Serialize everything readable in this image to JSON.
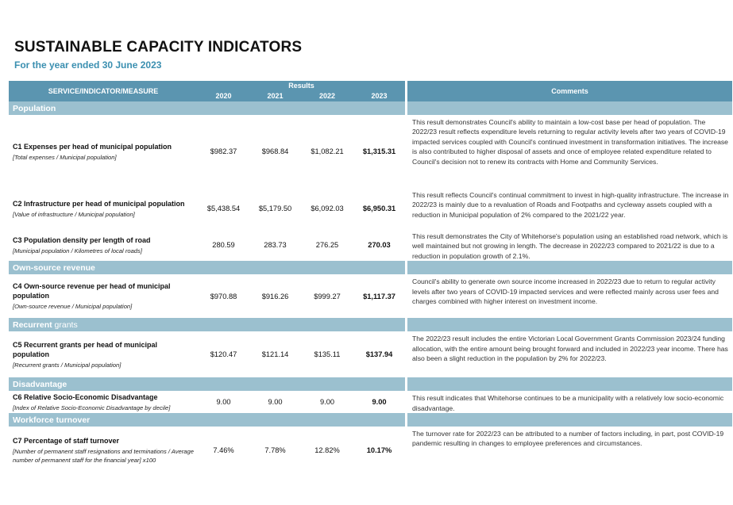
{
  "page": {
    "title": "SUSTAINABLE CAPACITY INDICATORS",
    "subtitle": "For the year ended 30 June 2023"
  },
  "table": {
    "col_indicator": "SERVICE/INDICATOR/MEASURE",
    "col_results": "Results",
    "col_comments": "Comments",
    "years": [
      "2020",
      "2021",
      "2022",
      "2023"
    ],
    "sections": [
      {
        "title": "Population",
        "title_light": "",
        "rows": [
          {
            "name": "C1 Expenses per head of municipal population",
            "formula": "[Total expenses / Municipal population]",
            "values": [
              "$982.37",
              "$968.84",
              "$1,082.21",
              "$1,315.31"
            ],
            "comment": "This result demonstrates Council's ability to maintain a low-cost base per head of population. The 2022/23 result reflects expenditure levels returning to regular activity levels after two years of COVID-19 impacted services coupled with Council's continued investment in transformation initiatives. The increase is also contributed to higher disposal of assets and once of employee related expenditure related to Council's decision not to renew its contracts with Home and Community Services."
          },
          {
            "name": "C2 Infrastructure per head of municipal population",
            "formula": "[Value of infrastructure / Municipal population]",
            "values": [
              "$5,438.54",
              "$5,179.50",
              "$6,092.03",
              "$6,950.31"
            ],
            "comment": "This result reflects Council's continual commitment to invest in high-quality infrastructure. The increase in 2022/23 is mainly due to a revaluation of Roads and Footpaths and cycleway assets coupled with a reduction in Municipal population of 2% compared to the 2021/22 year."
          },
          {
            "name": "C3 Population density per length of road",
            "formula": "[Municipal population / Kilometres of local roads]",
            "values": [
              "280.59",
              "283.73",
              "276.25",
              "270.03"
            ],
            "comment": "This result demonstrates the City of Whitehorse's population using an established road network, which is well maintained but not growing in length. The decrease in 2022/23 compared to 2021/22 is due to a reduction in population growth of 2.1%."
          }
        ]
      },
      {
        "title": "Own-source revenue",
        "title_light": "",
        "rows": [
          {
            "name": "C4 Own-source revenue per head of municipal population",
            "formula": "[Own-source revenue / Municipal population]",
            "values": [
              "$970.88",
              "$916.26",
              "$999.27",
              "$1,117.37"
            ],
            "comment": "Council's ability to generate own source income increased in 2022/23 due to return to regular activity levels after two years of COVID-19 impacted services and were reflected mainly across user fees and charges combined with higher interest on investment income."
          }
        ]
      },
      {
        "title": "Recurrent",
        "title_light": " grants",
        "rows": [
          {
            "name": "C5 Recurrent grants per head of municipal population",
            "formula": "[Recurrent grants / Municipal population]",
            "values": [
              "$120.47",
              "$121.14",
              "$135.11",
              "$137.94"
            ],
            "comment": "The 2022/23 result includes the entire Victorian Local Government Grants Commission 2023/24 funding allocation, with the entire amount being brought forward and included in 2022/23 year income. There has also been a slight reduction in the population by 2% for 2022/23."
          }
        ]
      },
      {
        "title": "Disadvantage",
        "title_light": "",
        "rows": [
          {
            "name": "C6 Relative Socio-Economic Disadvantage",
            "formula": "[Index of Relative Socio-Economic Disadvantage by decile]",
            "values": [
              "9.00",
              "9.00",
              "9.00",
              "9.00"
            ],
            "comment": "This result indicates that Whitehorse continues to be a municipality with a relatively low socio-economic disadvantage."
          }
        ]
      },
      {
        "title": "Workforce turnover",
        "title_light": "",
        "rows": [
          {
            "name": "C7 Percentage of staff turnover",
            "formula": "[Number of permanent staff resignations and terminations / Average number of permanent staff for the financial year] x100",
            "values": [
              "7.46%",
              "7.78%",
              "12.82%",
              "10.17%"
            ],
            "comment": "The turnover rate for 2022/23 can be attributed to a number of factors including, in part, post COVID-19 pandemic resulting in changes to employee preferences and circumstances."
          }
        ]
      }
    ]
  }
}
